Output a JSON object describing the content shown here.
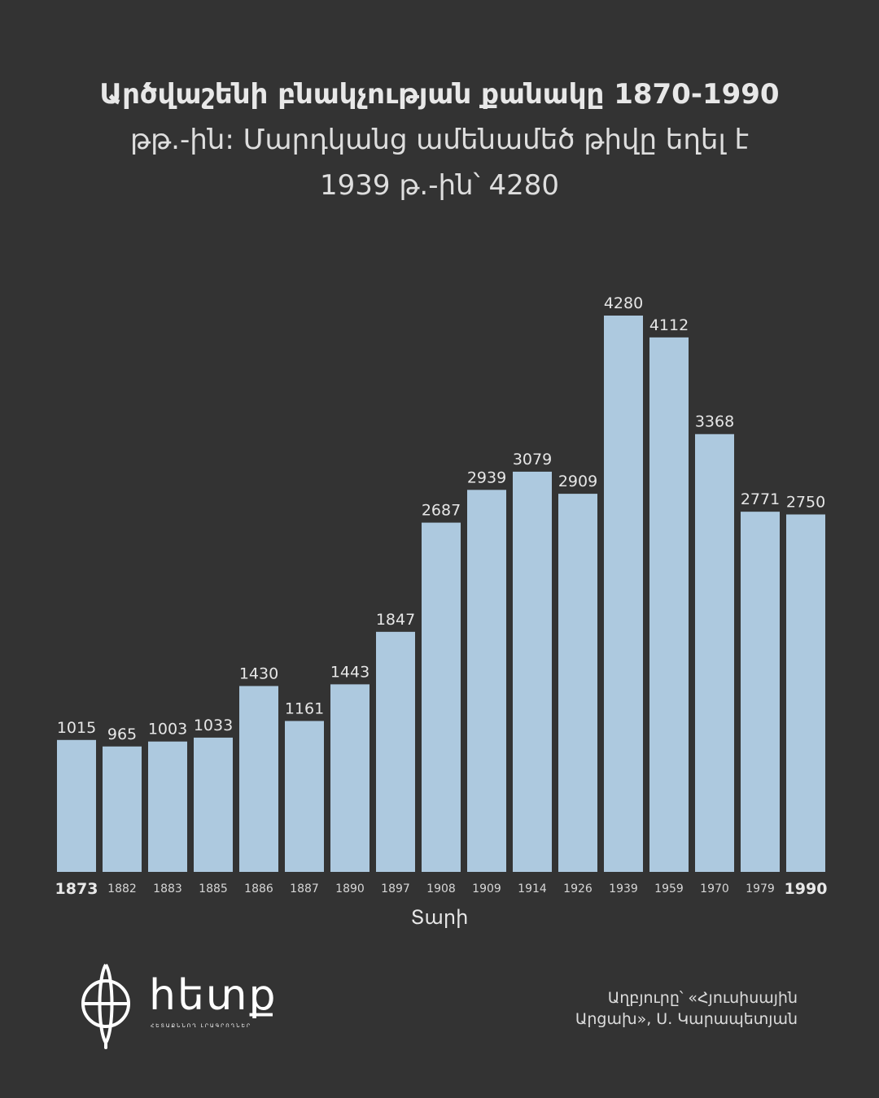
{
  "title": {
    "line1": "Արծվաշենի բնակչության քանակը 1870-1990",
    "line2": "թթ.-ին: Մարդկանց ամենամեծ թիվը եղել է",
    "line3": "1939 թ.-ին՝ 4280"
  },
  "chart_data": {
    "type": "bar",
    "title": "Արծվաշենի բնակչության քանակը 1870-1990 թթ.-ին: Մարդկանց ամենամեծ թիվը եղել է 1939 թ.-ին՝ 4280",
    "xlabel": "Տարի",
    "ylabel": "",
    "categories": [
      "1873",
      "1882",
      "1883",
      "1885",
      "1886",
      "1887",
      "1890",
      "1897",
      "1908",
      "1909",
      "1914",
      "1926",
      "1939",
      "1959",
      "1970",
      "1979",
      "1990"
    ],
    "values": [
      1015,
      965,
      1003,
      1033,
      1430,
      1161,
      1443,
      1847,
      2687,
      2939,
      3079,
      2909,
      4280,
      4112,
      3368,
      2771,
      2750
    ],
    "bold_ticks": [
      "1873",
      "1990"
    ],
    "ylim": [
      0,
      4280
    ],
    "grid": false,
    "bar_color": "#adc9df",
    "background": "#333333"
  },
  "logo": {
    "name": "hետք",
    "tagline": "ՀԵՏԱՔՆՆՈՂ ԼՐԱԳՐՈՂՆԵՐ",
    "icon": "globe-logo-icon"
  },
  "source": {
    "line1": "Աղբյուրը՝ «Հյուսիսային",
    "line2": "Արցախ», Ս. Կարապետյան"
  }
}
